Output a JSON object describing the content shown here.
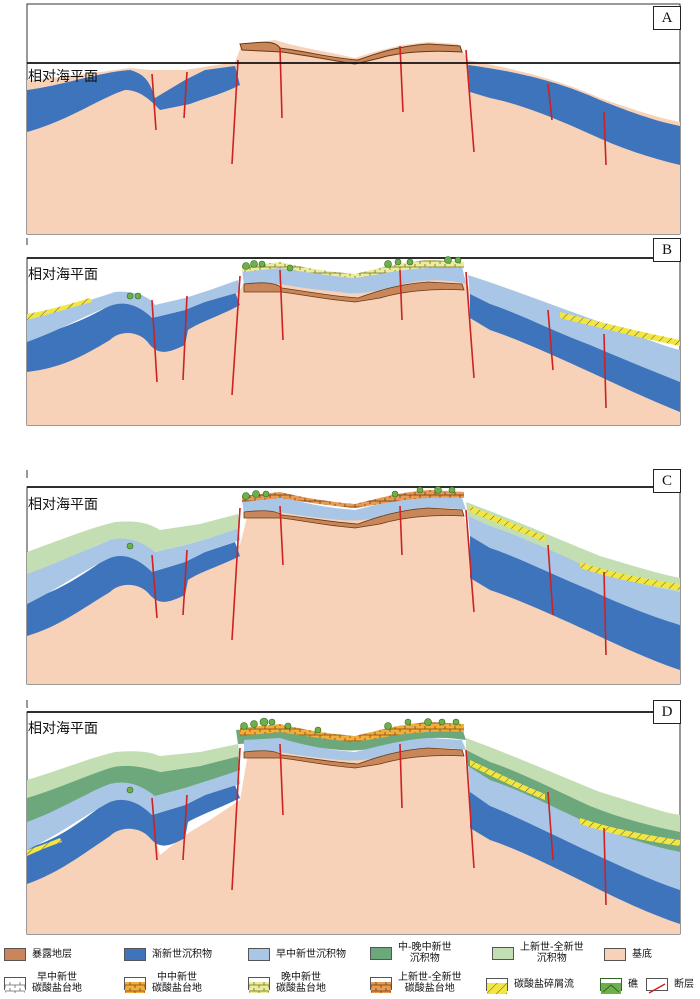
{
  "panels": [
    {
      "letter": "A",
      "sea_label": "相对海平面"
    },
    {
      "letter": "B",
      "sea_label": "相对海平面"
    },
    {
      "letter": "C",
      "sea_label": "相对海平面"
    },
    {
      "letter": "D",
      "sea_label": "相对海平面"
    }
  ],
  "legend": [
    {
      "label": "暴露地层",
      "swatch": "exposed",
      "color": "#c8865a"
    },
    {
      "label": "渐新世沉积物",
      "swatch": "oligocene",
      "color": "#3e74bc"
    },
    {
      "label": "早中新世沉积物",
      "swatch": "early-miocene",
      "color": "#a9c6e6"
    },
    {
      "label": "中-晚中新世\n沉积物",
      "swatch": "mid-late-miocene",
      "color": "#6da87c"
    },
    {
      "label": "上新世-全新世\n沉积物",
      "swatch": "pliocene-holocene",
      "color": "#c4deb4"
    },
    {
      "label": "基底",
      "swatch": "basement",
      "color": "#f7d2b8"
    },
    {
      "label": "早中新世\n碳酸盐台地",
      "swatch": "early-platform",
      "color": "#ffffff"
    },
    {
      "label": "中中新世\n碳酸盐台地",
      "swatch": "middle-platform",
      "color": "#f2ae3c"
    },
    {
      "label": "晚中新世\n碳酸盐台地",
      "swatch": "late-platform",
      "color": "#ecec9c"
    },
    {
      "label": "上新世-全新世\n碳酸盐台地",
      "swatch": "pliocene-platform",
      "color": "#e89a52"
    },
    {
      "label": "碳酸盐碎屑流",
      "swatch": "debris-flow",
      "color": "#f2e640"
    },
    {
      "label": "礁",
      "swatch": "reef",
      "color": "#6cb04e"
    },
    {
      "label": "断层",
      "swatch": "fault",
      "color": "#cc2222"
    }
  ]
}
